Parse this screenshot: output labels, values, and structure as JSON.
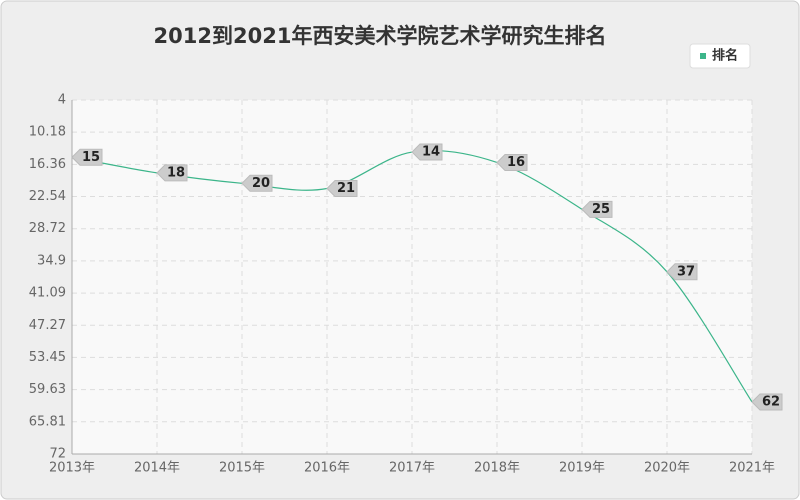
{
  "chart_data": {
    "type": "line",
    "title": "2012到2021年西安美术学院艺术学研究生排名",
    "categories": [
      "2013年",
      "2014年",
      "2015年",
      "2016年",
      "2017年",
      "2018年",
      "2019年",
      "2020年",
      "2021年"
    ],
    "series": [
      {
        "name": "排名",
        "color": "#3cb58a",
        "values": [
          15,
          18,
          20,
          21,
          14,
          16,
          25,
          37,
          62
        ]
      }
    ],
    "ylim": [
      4,
      72
    ],
    "y_reversed": true,
    "yticks": [
      4,
      10.18,
      16.36,
      22.54,
      28.72,
      34.9,
      41.09,
      47.27,
      53.45,
      59.63,
      65.81,
      72
    ],
    "grid": true,
    "legend": "top-right",
    "smooth": true
  }
}
